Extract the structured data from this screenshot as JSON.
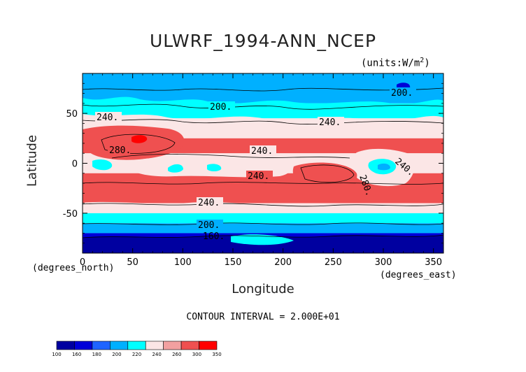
{
  "chart_data": {
    "type": "heatmap",
    "title": "ULWRF_1994-ANN_NCEP",
    "units": "(units:W/m^2)",
    "xlabel": "Longitude",
    "ylabel": "Latitude",
    "xunit": "(degrees_east)",
    "yunit": "(degrees_north)",
    "xlim": [
      0,
      360
    ],
    "ylim": [
      -90,
      90
    ],
    "xticks": [
      "0",
      "50",
      "100",
      "150",
      "200",
      "250",
      "300",
      "350"
    ],
    "yticks": [
      "50",
      "0",
      "-50"
    ],
    "contour_interval_text": "CONTOUR INTERVAL = 2.000E+01",
    "contour_labels": [
      "200.",
      "240.",
      "280.",
      "240.",
      "240.",
      "280.",
      "240.",
      "240.",
      "240.",
      "200.",
      "160."
    ],
    "colorbar": {
      "labels": [
        "100",
        "160",
        "180",
        "200",
        "220",
        "240",
        "260",
        "300",
        "350"
      ],
      "colors": [
        "#0000a0",
        "#0000d8",
        "#1e64ff",
        "#00b0ff",
        "#00ffff",
        "#fbe6e6",
        "#f2a0a0",
        "#ef5050",
        "#ff0000"
      ]
    },
    "bands": [
      {
        "lat_range": [
          60,
          90
        ],
        "level": "200-220",
        "color": "#00b0ff"
      },
      {
        "lat_range": [
          45,
          60
        ],
        "level": "220-240",
        "color": "#00ffff"
      },
      {
        "lat_range": [
          25,
          45
        ],
        "level": "240-260",
        "color": "#fbe6e6"
      },
      {
        "lat_range": [
          10,
          25
        ],
        "level": "260-300",
        "color": "#ef5050"
      },
      {
        "lat_range": [
          -10,
          10
        ],
        "level": "240-260",
        "color": "#fbe6e6"
      },
      {
        "lat_range": [
          -40,
          -10
        ],
        "level": "260-300",
        "color": "#ef5050"
      },
      {
        "lat_range": [
          -50,
          -40
        ],
        "level": "240-260",
        "color": "#fbe6e6"
      },
      {
        "lat_range": [
          -60,
          -50
        ],
        "level": "220-240",
        "color": "#00ffff"
      },
      {
        "lat_range": [
          -70,
          -60
        ],
        "level": "200-220",
        "color": "#00b0ff"
      },
      {
        "lat_range": [
          -90,
          -70
        ],
        "level": "100-180",
        "color": "#0000d8"
      }
    ]
  }
}
